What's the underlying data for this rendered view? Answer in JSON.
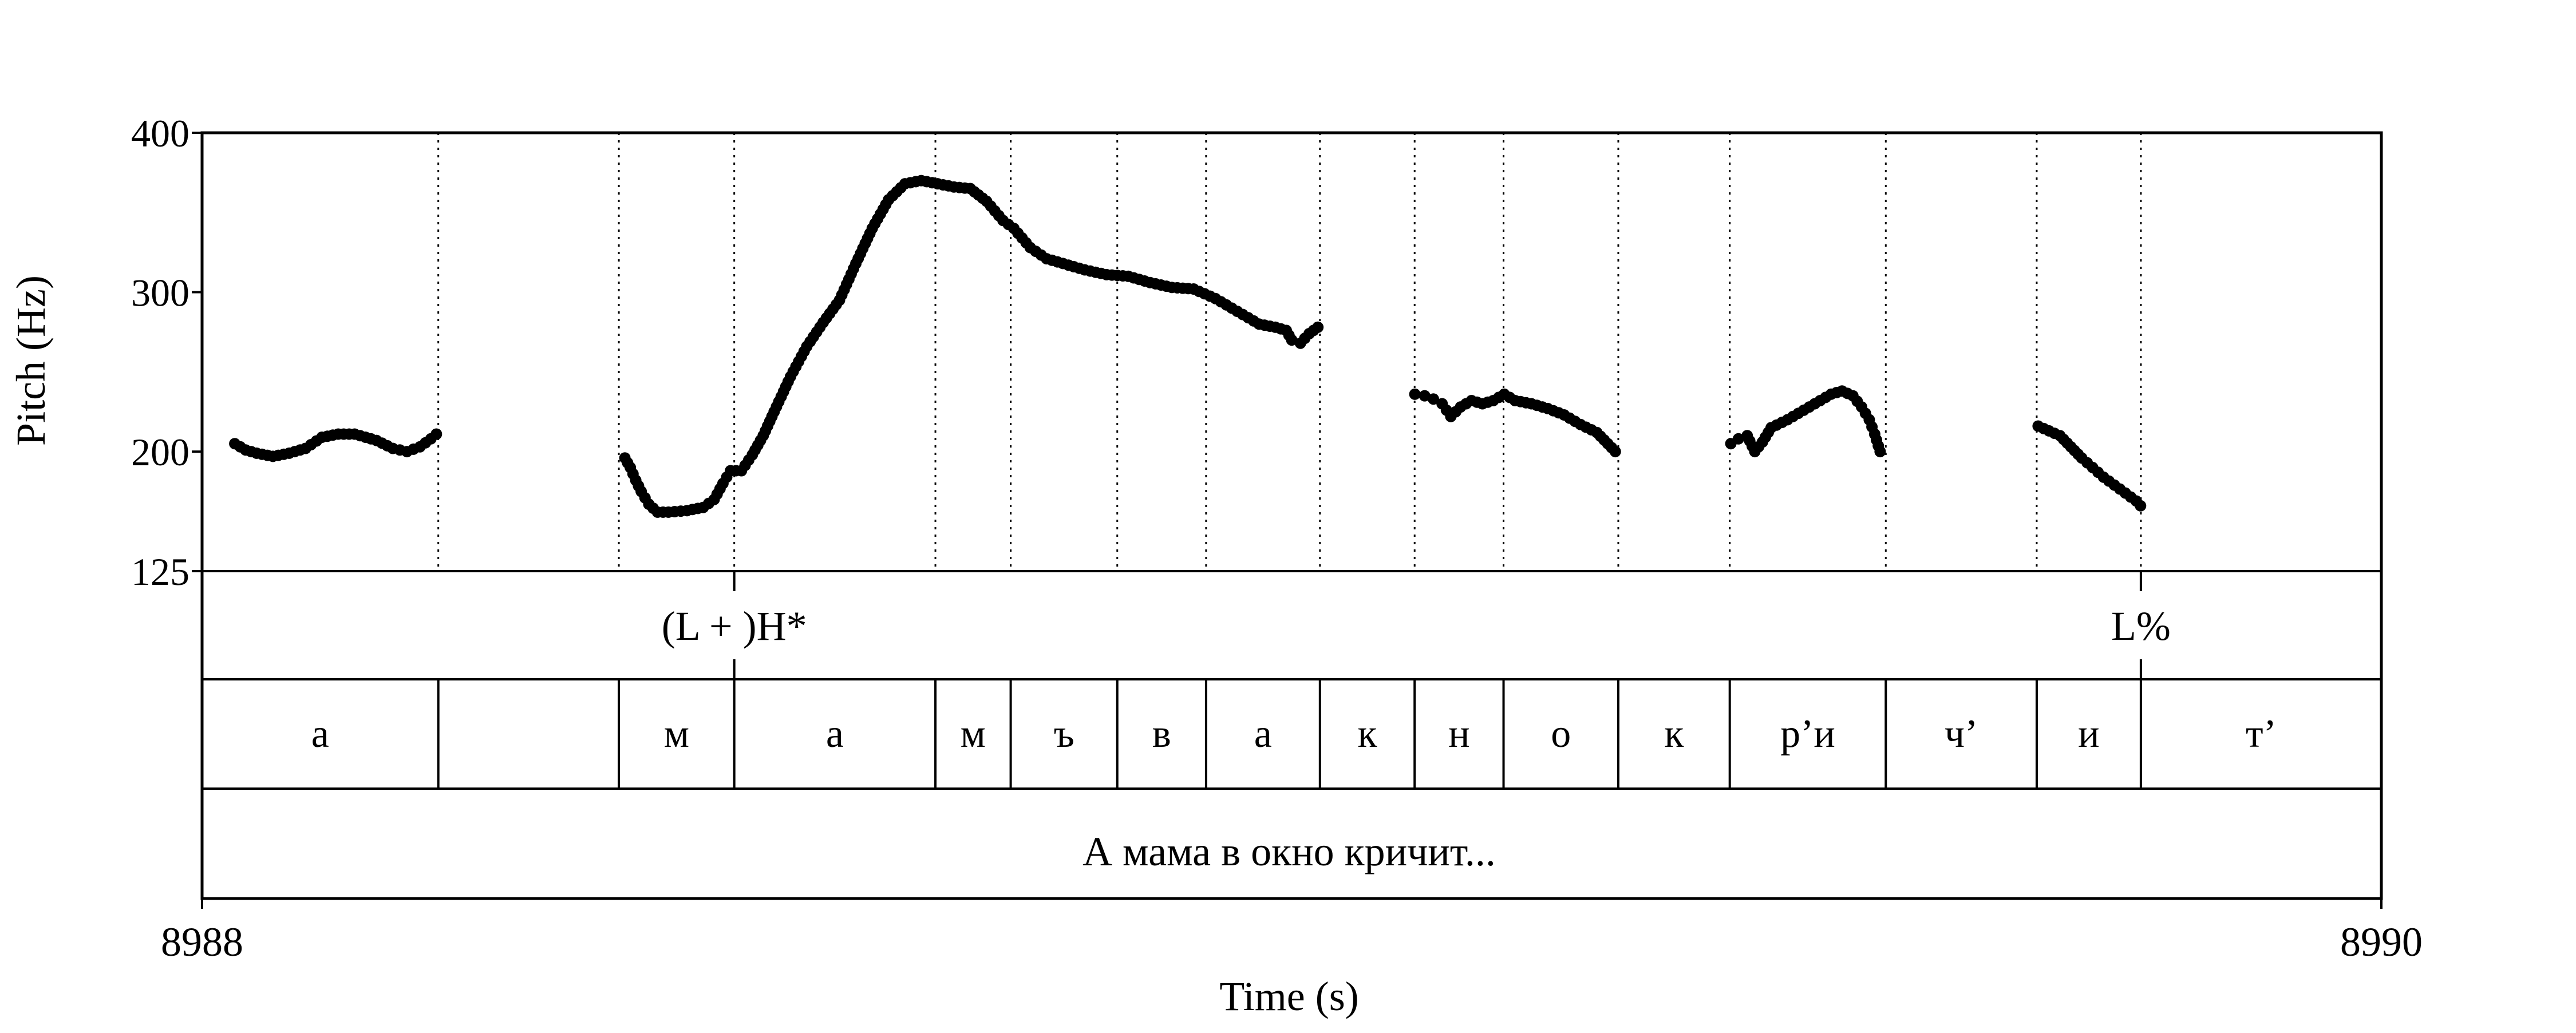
{
  "chart_data": {
    "type": "scatter",
    "xlabel": "Time (s)",
    "ylabel": "Pitch (Hz)",
    "xlim": [
      8988,
      8990
    ],
    "ylim": [
      125,
      400
    ],
    "x_ticks": [
      "8988",
      "8990"
    ],
    "y_ticks": [
      {
        "value": 400,
        "label": "400"
      },
      {
        "value": 300,
        "label": "300"
      },
      {
        "value": 200,
        "label": "200"
      },
      {
        "value": 125,
        "label": "125"
      }
    ],
    "boundaries": [
      8988.2168,
      8988.3825,
      8988.4884,
      8988.673,
      8988.7421,
      8988.8399,
      8988.9214,
      8989.0259,
      8989.1128,
      8989.1944,
      8989.2997,
      8989.402,
      8989.5452,
      8989.6837,
      8989.7793
    ],
    "tones": [
      {
        "label": "(L + )H*",
        "time": 8988.4884
      },
      {
        "label": "L%",
        "time": 8989.7793
      }
    ],
    "segments": [
      {
        "start": 8988.0,
        "end": 8988.2168,
        "label": "а"
      },
      {
        "start": 8988.2168,
        "end": 8988.3825,
        "label": ""
      },
      {
        "start": 8988.3825,
        "end": 8988.4884,
        "label": "м"
      },
      {
        "start": 8988.4884,
        "end": 8988.673,
        "label": "а"
      },
      {
        "start": 8988.673,
        "end": 8988.7421,
        "label": "м"
      },
      {
        "start": 8988.7421,
        "end": 8988.8399,
        "label": "ъ"
      },
      {
        "start": 8988.8399,
        "end": 8988.9214,
        "label": "в"
      },
      {
        "start": 8988.9214,
        "end": 8989.0259,
        "label": "а"
      },
      {
        "start": 8989.0259,
        "end": 8989.1128,
        "label": "к"
      },
      {
        "start": 8989.1128,
        "end": 8989.1944,
        "label": "н"
      },
      {
        "start": 8989.1944,
        "end": 8989.2997,
        "label": "о"
      },
      {
        "start": 8989.2997,
        "end": 8989.402,
        "label": "к"
      },
      {
        "start": 8989.402,
        "end": 8989.5452,
        "label": "р’и"
      },
      {
        "start": 8989.5452,
        "end": 8989.6837,
        "label": "ч’"
      },
      {
        "start": 8989.6837,
        "end": 8989.7793,
        "label": "и"
      },
      {
        "start": 8989.7793,
        "end": 8990.0,
        "label": "т’"
      }
    ],
    "utterance": "А мама в окно кричит...",
    "pitch_contours": [
      [
        [
          8988.03,
          205
        ],
        [
          8988.04,
          201
        ],
        [
          8988.05,
          199
        ],
        [
          8988.065,
          197
        ],
        [
          8988.08,
          199
        ],
        [
          8988.095,
          202
        ],
        [
          8988.11,
          209
        ],
        [
          8988.125,
          211
        ],
        [
          8988.14,
          211
        ],
        [
          8988.16,
          207
        ],
        [
          8988.175,
          202
        ],
        [
          8988.188,
          200
        ],
        [
          8988.2,
          203
        ],
        [
          8988.21,
          208
        ],
        [
          8988.215,
          211
        ]
      ],
      [
        [
          8988.388,
          196
        ],
        [
          8988.393,
          190
        ],
        [
          8988.398,
          182
        ],
        [
          8988.403,
          175
        ],
        [
          8988.41,
          167
        ],
        [
          8988.418,
          162
        ],
        [
          8988.428,
          162
        ],
        [
          8988.445,
          163
        ],
        [
          8988.46,
          165
        ],
        [
          8988.47,
          170
        ],
        [
          8988.478,
          180
        ],
        [
          8988.485,
          188
        ],
        [
          8988.495,
          188
        ],
        [
          8988.505,
          198
        ],
        [
          8988.515,
          210
        ],
        [
          8988.525,
          225
        ],
        [
          8988.54,
          247
        ],
        [
          8988.555,
          266
        ],
        [
          8988.57,
          281
        ],
        [
          8988.585,
          295
        ],
        [
          8988.6,
          318
        ],
        [
          8988.615,
          340
        ],
        [
          8988.63,
          358
        ],
        [
          8988.645,
          368
        ],
        [
          8988.66,
          370
        ],
        [
          8988.675,
          368
        ],
        [
          8988.69,
          366
        ],
        [
          8988.705,
          365
        ],
        [
          8988.72,
          357
        ],
        [
          8988.735,
          345
        ],
        [
          8988.745,
          340
        ],
        [
          8988.76,
          328
        ],
        [
          8988.775,
          321
        ],
        [
          8988.79,
          318
        ],
        [
          8988.81,
          314
        ],
        [
          8988.83,
          311
        ],
        [
          8988.85,
          310
        ],
        [
          8988.87,
          306
        ],
        [
          8988.89,
          303
        ],
        [
          8988.91,
          302
        ],
        [
          8988.93,
          296
        ],
        [
          8988.95,
          288
        ],
        [
          8988.97,
          280
        ],
        [
          8988.985,
          278
        ],
        [
          8988.995,
          276
        ],
        [
          8989.0,
          270
        ],
        [
          8989.008,
          268
        ],
        [
          8989.016,
          274
        ],
        [
          8989.024,
          278
        ]
      ],
      [
        [
          8989.113,
          236
        ],
        [
          8989.122,
          235
        ],
        [
          8989.13,
          233
        ],
        [
          8989.138,
          230
        ],
        [
          8989.146,
          222
        ],
        [
          8989.155,
          228
        ],
        [
          8989.165,
          232
        ],
        [
          8989.175,
          230
        ],
        [
          8989.185,
          232
        ],
        [
          8989.195,
          236
        ],
        [
          8989.205,
          232
        ],
        [
          8989.22,
          230
        ],
        [
          8989.235,
          227
        ],
        [
          8989.25,
          223
        ],
        [
          8989.265,
          217
        ],
        [
          8989.28,
          212
        ],
        [
          8989.29,
          205
        ],
        [
          8989.297,
          200
        ]
      ],
      [
        [
          8989.403,
          205
        ],
        [
          8989.41,
          208
        ],
        [
          8989.418,
          210
        ],
        [
          8989.425,
          200
        ],
        [
          8989.432,
          206
        ],
        [
          8989.44,
          215
        ],
        [
          8989.455,
          220
        ],
        [
          8989.47,
          226
        ],
        [
          8989.485,
          232
        ],
        [
          8989.495,
          236
        ],
        [
          8989.505,
          238
        ],
        [
          8989.515,
          235
        ],
        [
          8989.523,
          228
        ],
        [
          8989.53,
          220
        ],
        [
          8989.535,
          211
        ],
        [
          8989.54,
          200
        ]
      ],
      [
        [
          8989.685,
          216
        ],
        [
          8989.695,
          213
        ],
        [
          8989.705,
          210
        ],
        [
          8989.715,
          203
        ],
        [
          8989.725,
          196
        ],
        [
          8989.735,
          190
        ],
        [
          8989.745,
          184
        ],
        [
          8989.755,
          179
        ],
        [
          8989.765,
          174
        ],
        [
          8989.775,
          169
        ],
        [
          8989.779,
          166
        ]
      ]
    ]
  }
}
